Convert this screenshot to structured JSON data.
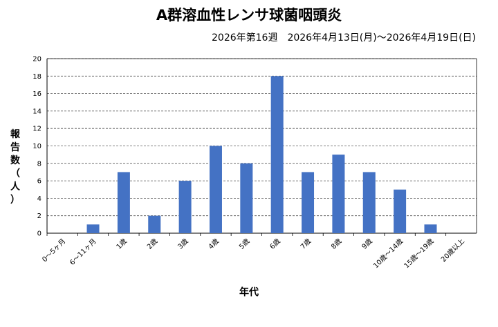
{
  "chart_data": {
    "type": "bar",
    "title": "A群溶血性レンサ球菌咽頭炎",
    "subtitle": "2026年第16週　2026年4月13日(月)～2026年4月19日(日)",
    "xlabel": "年代",
    "ylabel": "報告数（人）",
    "categories": [
      "0～5ヶ月",
      "6～11ヶ月",
      "1歳",
      "2歳",
      "3歳",
      "4歳",
      "5歳",
      "6歳",
      "7歳",
      "8歳",
      "9歳",
      "10歳～14歳",
      "15歳～19歳",
      "20歳以上"
    ],
    "values": [
      0,
      1,
      7,
      2,
      6,
      10,
      8,
      18,
      7,
      9,
      7,
      5,
      1,
      0
    ],
    "ylim": [
      0,
      20
    ],
    "yticks": [
      0,
      2,
      4,
      6,
      8,
      10,
      12,
      14,
      16,
      18,
      20
    ],
    "grid": "horizontal dashed",
    "legend": "none",
    "colors": {
      "bar": "#4472C4",
      "grid": "#555555",
      "axis": "#000000"
    }
  }
}
